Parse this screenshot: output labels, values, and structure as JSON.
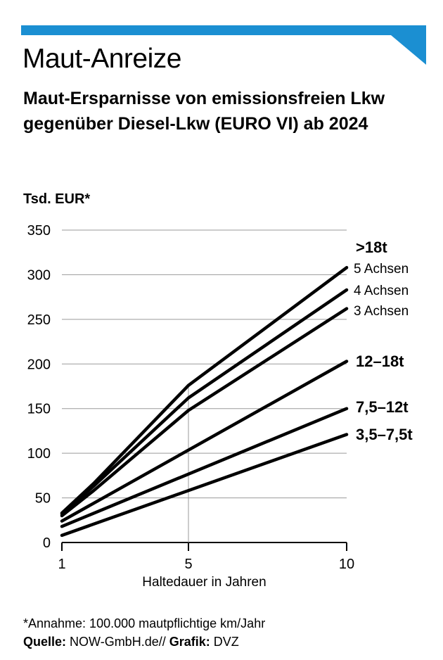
{
  "header": {
    "title": "Maut-Anreize",
    "subtitle": "Maut-Ersparnisse von emissionsfreien Lkw gegenüber Diesel-Lkw (EURO VI) ab 2024",
    "accent_color": "#1b8fd2"
  },
  "chart_data": {
    "type": "line",
    "ylabel": "Tsd. EUR*",
    "xlabel": "Haltedauer in Jahren",
    "xlim": [
      1,
      10
    ],
    "ylim": [
      0,
      350
    ],
    "xticks": [
      1,
      5,
      10
    ],
    "yticks": [
      0,
      50,
      100,
      150,
      200,
      250,
      300,
      350
    ],
    "grid": "horizontal lines at y ticks, vertical line at x=5",
    "group_label": ">18t",
    "series": [
      {
        "name": "5 Achsen",
        "x": [
          1,
          2,
          5,
          10
        ],
        "values": [
          33,
          66,
          176,
          308
        ],
        "bold": false
      },
      {
        "name": "4 Achsen",
        "x": [
          1,
          2,
          5,
          10
        ],
        "values": [
          32,
          63,
          162,
          283
        ],
        "bold": false
      },
      {
        "name": "3 Achsen",
        "x": [
          1,
          2,
          5,
          10
        ],
        "values": [
          30,
          58,
          148,
          262
        ],
        "bold": false
      },
      {
        "name": "12–18t",
        "x": [
          1,
          10
        ],
        "values": [
          24,
          203
        ],
        "bold": true
      },
      {
        "name": "7,5–12t",
        "x": [
          1,
          10
        ],
        "values": [
          18,
          150
        ],
        "bold": true
      },
      {
        "name": "3,5–7,5t",
        "x": [
          1,
          10
        ],
        "values": [
          8,
          121
        ],
        "bold": true
      }
    ]
  },
  "footer": {
    "footnote": "*Annahme: 100.000 mautpflichtige km/Jahr",
    "source_label": "Quelle:",
    "source_value": "NOW-GmbH.de//",
    "graphic_label": "Grafik:",
    "graphic_value": "DVZ"
  }
}
